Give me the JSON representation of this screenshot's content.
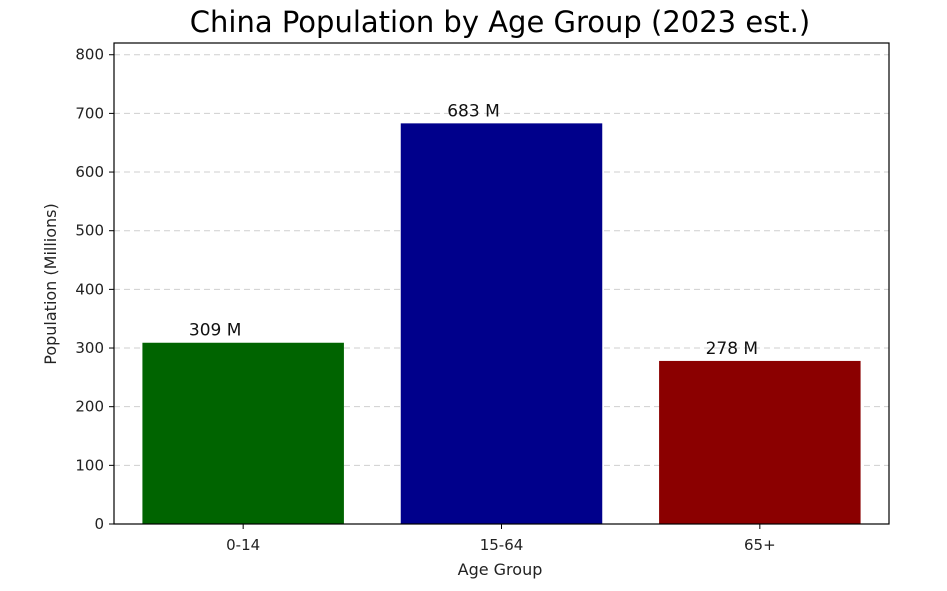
{
  "chart_data": {
    "type": "bar",
    "title": "China Population by Age Group (2023 est.)",
    "xlabel": "Age Group",
    "ylabel": "Population (Millions)",
    "categories": [
      "0-14",
      "15-64",
      "65+"
    ],
    "values": [
      309,
      683,
      278
    ],
    "data_labels": [
      "309 M",
      "683 M",
      "278 M"
    ],
    "colors": [
      "#006400",
      "#00008b",
      "#8b0000"
    ],
    "ylim": [
      0,
      820
    ],
    "yticks": [
      0,
      100,
      200,
      300,
      400,
      500,
      600,
      700,
      800
    ],
    "grid": "y-dashed"
  }
}
